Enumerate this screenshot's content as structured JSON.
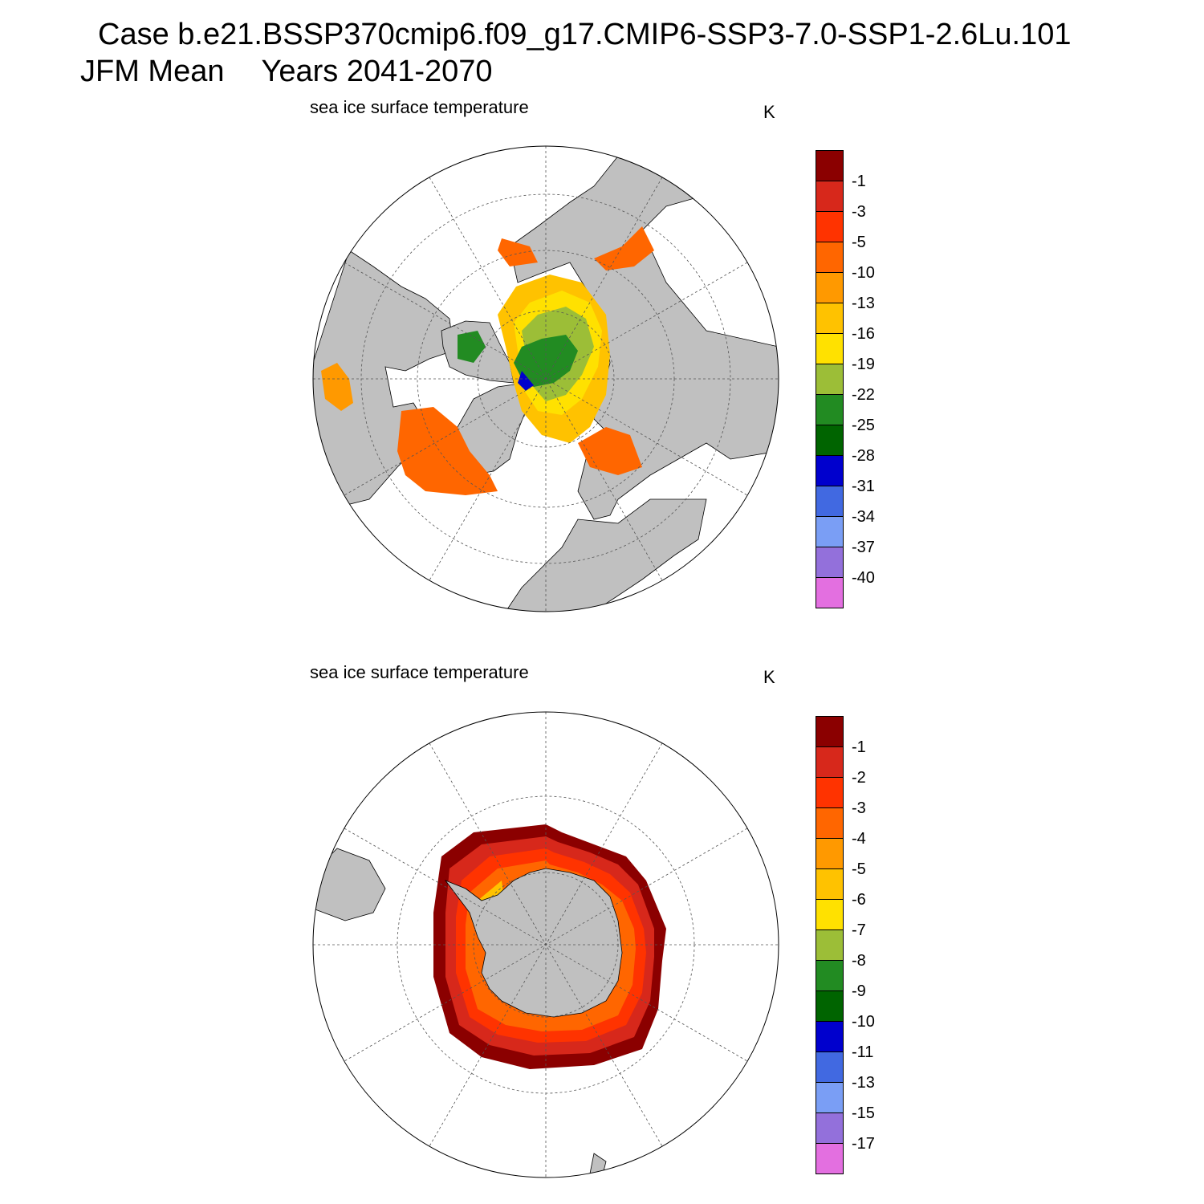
{
  "header": {
    "case_title": "Case b.e21.BSSP370cmip6.f09_g17.CMIP6-SSP3-7.0-SSP1-2.6Lu.101",
    "season": "JFM Mean",
    "years": "Years 2041-2070"
  },
  "colors": {
    "land": "#c0c0c0",
    "ocean": "#ffffff",
    "palette": [
      "#8b0000",
      "#d7281b",
      "#ff3300",
      "#ff6600",
      "#ff9900",
      "#ffc200",
      "#ffe100",
      "#9cbe37",
      "#228b22",
      "#006400",
      "#0000cd",
      "#4169e1",
      "#7a9ef5",
      "#9370db",
      "#e36fe0"
    ]
  },
  "panels": [
    {
      "id": "north",
      "hemisphere": "Arctic",
      "title": "sea ice surface temperature",
      "units": "K",
      "colorbar_levels": [
        "-1",
        "-3",
        "-5",
        "-10",
        "-13",
        "-16",
        "-19",
        "-22",
        "-25",
        "-28",
        "-31",
        "-34",
        "-37",
        "-40"
      ]
    },
    {
      "id": "south",
      "hemisphere": "Antarctic",
      "title": "sea ice surface temperature",
      "units": "K",
      "colorbar_levels": [
        "-1",
        "-2",
        "-3",
        "-4",
        "-5",
        "-6",
        "-7",
        "-8",
        "-9",
        "-10",
        "-11",
        "-13",
        "-15",
        "-17"
      ]
    }
  ]
}
